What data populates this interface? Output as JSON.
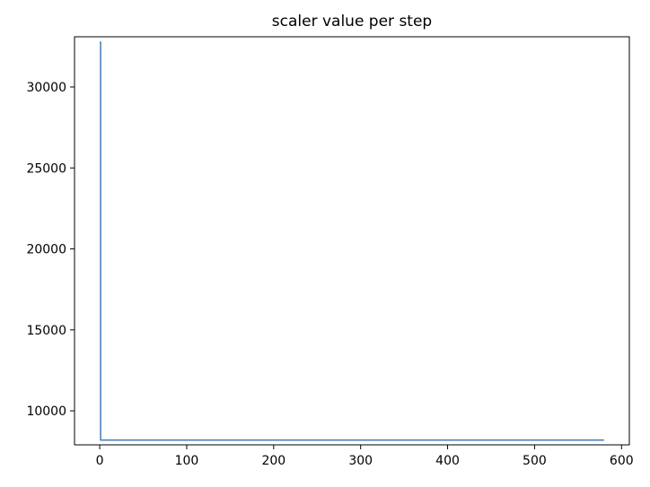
{
  "chart_data": {
    "type": "line",
    "title": "scaler value per step",
    "xlabel": "",
    "ylabel": "",
    "xlim": [
      -29,
      609
    ],
    "ylim": [
      7900,
      33100
    ],
    "x_ticks": [
      0,
      100,
      200,
      300,
      400,
      500,
      600
    ],
    "y_ticks": [
      10000,
      15000,
      20000,
      25000,
      30000
    ],
    "grid": false,
    "legend": "none",
    "series": [
      {
        "color": "#4c83b8",
        "x": [
          0,
          1,
          1,
          580
        ],
        "y": [
          32768,
          32768,
          8192,
          8192
        ]
      }
    ]
  }
}
